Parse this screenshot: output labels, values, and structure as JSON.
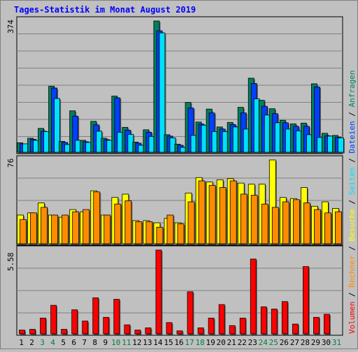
{
  "title": "Tages-Statistik im Monat August 2019",
  "colors": {
    "page_bg": "#c0c0c0",
    "panel_bg": "#c0c0c0",
    "border": "#000000",
    "grid": "#808080",
    "title": "#0000ff",
    "anfragen": "#00805f",
    "dateien": "#0040ff",
    "seiten": "#00e0ff",
    "besuche": "#ffff00",
    "rechner": "#ff8c00",
    "volumen": "#ff0000",
    "weekend_day": "#008040",
    "weekday": "#000000"
  },
  "chart_data": [
    {
      "type": "bar",
      "panel": "top",
      "ymax_label": "374",
      "ylim": [
        0,
        374
      ],
      "categories": [
        "1",
        "2",
        "3",
        "4",
        "5",
        "6",
        "7",
        "8",
        "9",
        "10",
        "11",
        "12",
        "13",
        "14",
        "15",
        "16",
        "17",
        "18",
        "19",
        "20",
        "21",
        "22",
        "23",
        "24",
        "25",
        "26",
        "27",
        "28",
        "29",
        "30",
        "31"
      ],
      "series": [
        {
          "name": "Anfragen",
          "values": [
            27,
            40,
            68,
            188,
            31,
            118,
            34,
            88,
            40,
            160,
            71,
            29,
            64,
            374,
            50,
            23,
            142,
            86,
            123,
            72,
            85,
            128,
            211,
            148,
            124,
            91,
            81,
            83,
            195,
            54,
            48
          ]
        },
        {
          "name": "Dateien",
          "values": [
            24,
            37,
            60,
            183,
            28,
            103,
            30,
            78,
            36,
            155,
            63,
            26,
            57,
            346,
            46,
            20,
            126,
            80,
            112,
            66,
            79,
            112,
            196,
            131,
            110,
            84,
            74,
            74,
            186,
            47,
            43
          ]
        },
        {
          "name": "Seiten",
          "values": [
            24,
            34,
            59,
            153,
            22,
            34,
            28,
            60,
            34,
            57,
            51,
            20,
            45,
            340,
            41,
            14,
            48,
            77,
            59,
            59,
            72,
            66,
            152,
            106,
            84,
            66,
            61,
            50,
            42,
            46,
            41
          ]
        }
      ]
    },
    {
      "type": "bar",
      "panel": "middle",
      "ymax_label": "76",
      "ylim": [
        0,
        76
      ],
      "series": [
        {
          "name": "Besuche",
          "values": [
            26,
            28,
            37,
            26,
            24,
            31,
            29,
            48,
            26,
            42,
            45,
            21,
            21,
            19,
            23,
            19,
            46,
            60,
            56,
            58,
            59,
            55,
            54,
            54,
            76,
            42,
            41,
            51,
            34,
            38,
            32
          ]
        },
        {
          "name": "Rechner",
          "values": [
            22,
            28,
            33,
            26,
            26,
            29,
            31,
            47,
            26,
            36,
            39,
            20,
            20,
            15,
            26,
            18,
            38,
            57,
            53,
            51,
            57,
            45,
            44,
            36,
            33,
            38,
            40,
            37,
            31,
            28,
            29
          ]
        }
      ]
    },
    {
      "type": "bar",
      "panel": "bottom",
      "ymax_label": "5.58",
      "ylim": [
        0,
        5.58
      ],
      "series": [
        {
          "name": "Volumen",
          "values": [
            0.25,
            0.3,
            1.05,
            1.9,
            0.3,
            1.6,
            0.85,
            2.4,
            1.1,
            2.3,
            0.6,
            0.25,
            0.4,
            5.58,
            0.75,
            0.2,
            2.8,
            0.4,
            1.05,
            1.95,
            0.55,
            1.05,
            4.98,
            1.8,
            1.65,
            2.15,
            0.65,
            4.48,
            1.1,
            1.3,
            0.0
          ]
        }
      ]
    }
  ],
  "right_legend": [
    {
      "label": "Volumen",
      "color_key": "volumen"
    },
    {
      "label": " / ",
      "color_key": "weekday"
    },
    {
      "label": "Rechner",
      "color_key": "rechner"
    },
    {
      "label": " / ",
      "color_key": "weekday"
    },
    {
      "label": "Besuche",
      "color_key": "besuche"
    },
    {
      "label": " / ",
      "color_key": "weekday"
    },
    {
      "label": "Seiten",
      "color_key": "seiten"
    },
    {
      "label": " / ",
      "color_key": "weekday"
    },
    {
      "label": "Dateien",
      "color_key": "dateien"
    },
    {
      "label": " / ",
      "color_key": "weekday"
    },
    {
      "label": "Anfragen",
      "color_key": "anfragen"
    }
  ],
  "weekend_days": [
    3,
    4,
    10,
    11,
    17,
    18,
    24,
    25,
    31
  ]
}
